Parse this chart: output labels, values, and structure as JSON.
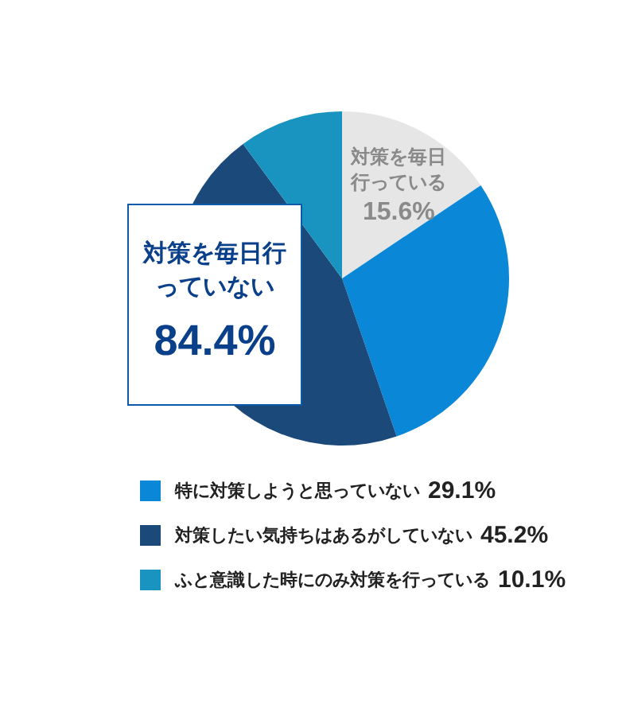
{
  "chart_data": {
    "type": "pie",
    "categories": [
      "対策を毎日行っている",
      "特に対策しようと思っていない",
      "対策したい気持ちはあるがしていない",
      "ふと意識した時にのみ対策を行っている"
    ],
    "values": [
      15.6,
      29.1,
      45.2,
      10.1
    ],
    "colors": [
      "#e6e6e6",
      "#0a87d6",
      "#1b4a7a",
      "#1993c0"
    ],
    "value_labels": [
      "15.6%",
      "29.1%",
      "45.2%",
      "10.1%"
    ],
    "legend": "bottom",
    "annotations": [
      "対策を毎日行っていない",
      "84.4%"
    ]
  }
}
